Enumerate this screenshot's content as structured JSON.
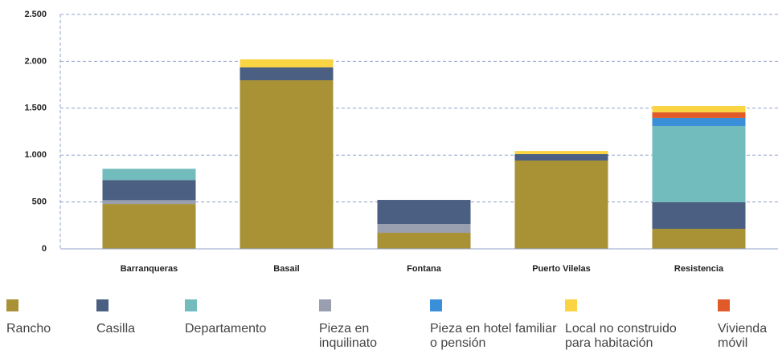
{
  "chart_data": {
    "type": "stacked-bar",
    "categories": [
      "Barranqueras",
      "Basail",
      "Fontana",
      "Puerto Vilelas",
      "Resistencia"
    ],
    "series": [
      {
        "name": "Rancho",
        "color": "#a99236",
        "values": [
          479,
          1798,
          171,
          942,
          214
        ]
      },
      {
        "name": "Casilla",
        "color": "#4a5f82",
        "values": [
          215,
          137,
          257,
          68,
          283
        ]
      },
      {
        "name": "Departamento",
        "color": "#72bcbd",
        "values": [
          120,
          0,
          0,
          0,
          813
        ]
      },
      {
        "name": "Pieza en inquilinato",
        "color": "#9a9fb0",
        "values": [
          40,
          0,
          94,
          0,
          0
        ]
      },
      {
        "name": "Pieza en hotel familiar o pensión",
        "color": "#3a8fd8",
        "values": [
          0,
          0,
          0,
          0,
          86
        ]
      },
      {
        "name": "Local no construido para habitación",
        "color": "#fbd444",
        "values": [
          0,
          86,
          0,
          34,
          68
        ]
      },
      {
        "name": "Vivienda móvil",
        "color": "#e05a2a",
        "values": [
          0,
          0,
          0,
          0,
          60
        ]
      }
    ],
    "ylim": [
      0,
      2500
    ],
    "yticks": [
      0,
      500,
      {
        "value": 1000,
        "label": "1.000"
      },
      {
        "value": 1500,
        "label": "1.500"
      },
      {
        "value": 2000,
        "label": "2.000"
      },
      {
        "value": 2500,
        "label": "2.500"
      }
    ],
    "grid": true
  }
}
